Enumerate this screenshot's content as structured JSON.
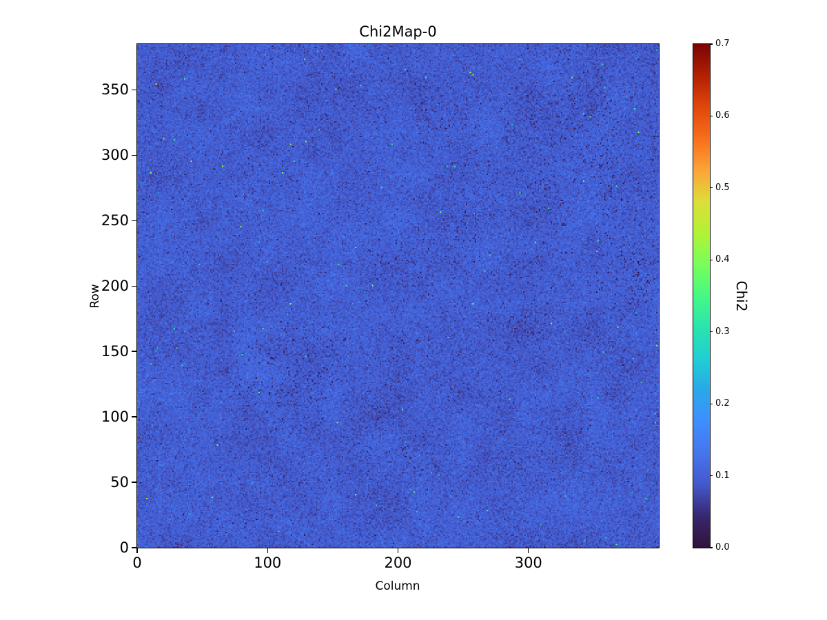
{
  "colors": {
    "background": "#ffffff",
    "axis": "#000000",
    "text": "#000000"
  },
  "chart_data": {
    "type": "heatmap",
    "title": "Chi2Map-0",
    "xlabel": "Column",
    "ylabel": "Row",
    "colorbar_label": "Chi2",
    "xlim": [
      0,
      400
    ],
    "ylim": [
      0,
      385
    ],
    "clim": [
      0.0,
      0.7
    ],
    "xticks": [
      0,
      100,
      200,
      300
    ],
    "yticks": [
      0,
      50,
      100,
      150,
      200,
      250,
      300,
      350
    ],
    "colorbar_ticks": [
      0.0,
      0.1,
      0.2,
      0.3,
      0.4,
      0.5,
      0.6,
      0.7
    ],
    "grid": {
      "cols": 400,
      "rows": 385
    },
    "colormap": "turbo",
    "colormap_stops": [
      {
        "t": 0.0,
        "color": "#30123b"
      },
      {
        "t": 0.0625,
        "color": "#38276f"
      },
      {
        "t": 0.125,
        "color": "#4358cb"
      },
      {
        "t": 0.1875,
        "color": "#4675ed"
      },
      {
        "t": 0.25,
        "color": "#3e8efe"
      },
      {
        "t": 0.3125,
        "color": "#28a8ea"
      },
      {
        "t": 0.375,
        "color": "#1fcfd4"
      },
      {
        "t": 0.4375,
        "color": "#2ae4ae"
      },
      {
        "t": 0.5,
        "color": "#46f884"
      },
      {
        "t": 0.5625,
        "color": "#78fe59"
      },
      {
        "t": 0.625,
        "color": "#b2f236"
      },
      {
        "t": 0.6875,
        "color": "#dede37"
      },
      {
        "t": 0.75,
        "color": "#fca338"
      },
      {
        "t": 0.8125,
        "color": "#f76e1b"
      },
      {
        "t": 0.875,
        "color": "#e1460c"
      },
      {
        "t": 0.9375,
        "color": "#b32002"
      },
      {
        "t": 1.0,
        "color": "#7a0403"
      }
    ],
    "noise": {
      "seed": 20240607,
      "base_mean": 0.095,
      "base_sd": 0.016,
      "patch_sd": 0.006,
      "patch_grid": [
        25,
        24
      ],
      "dark_fraction": 0.0035,
      "dark_max": 0.05,
      "bright_fraction": 0.0008,
      "bright_range": [
        0.18,
        0.45
      ],
      "dark_clusters": [
        {
          "col": 115,
          "row": 135,
          "radius": 55,
          "prob": 0.035
        },
        {
          "col": 205,
          "row": 220,
          "radius": 35,
          "prob": 0.025
        },
        {
          "col": 250,
          "row": 240,
          "radius": 35,
          "prob": 0.02
        },
        {
          "col": 330,
          "row": 300,
          "radius": 85,
          "prob": 0.018
        },
        {
          "col": 360,
          "row": 320,
          "radius": 50,
          "prob": 0.02
        },
        {
          "col": 390,
          "row": 200,
          "radius": 45,
          "prob": 0.03
        },
        {
          "col": 380,
          "row": 250,
          "radius": 40,
          "prob": 0.02
        },
        {
          "col": 200,
          "row": 75,
          "radius": 40,
          "prob": 0.015
        },
        {
          "col": 295,
          "row": 170,
          "radius": 35,
          "prob": 0.015
        },
        {
          "col": 230,
          "row": 330,
          "radius": 35,
          "prob": 0.012
        }
      ]
    }
  }
}
